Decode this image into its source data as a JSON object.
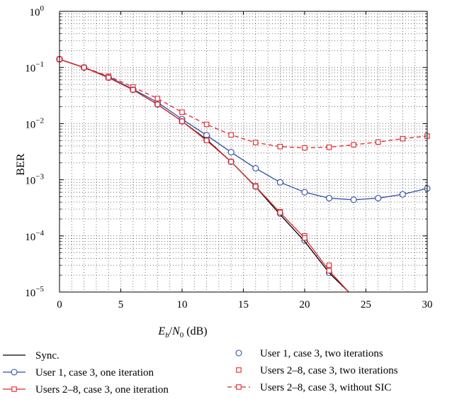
{
  "chart_data": {
    "type": "line",
    "title": "",
    "xlabel": {
      "base": "E",
      "base_sub": "b",
      "slash": "/",
      "denom": "N",
      "denom_sub": "0",
      "unit": " (dB)"
    },
    "ylabel": "BER",
    "xlim": [
      0,
      30
    ],
    "ylim": [
      1e-05,
      1
    ],
    "yscale": "log",
    "grid": true,
    "x_ticks": [
      0,
      5,
      10,
      15,
      20,
      25,
      30
    ],
    "x_tick_labels": [
      "0",
      "5",
      "10",
      "15",
      "20",
      "25",
      "30"
    ],
    "y_ticks": [
      {
        "value": 1,
        "base": "10",
        "exp": "0"
      },
      {
        "value": 0.1,
        "base": "10",
        "exp": "−1"
      },
      {
        "value": 0.01,
        "base": "10",
        "exp": "−2"
      },
      {
        "value": 0.001,
        "base": "10",
        "exp": "−3"
      },
      {
        "value": 0.0001,
        "base": "10",
        "exp": "−4"
      },
      {
        "value": 1e-05,
        "base": "10",
        "exp": "−5"
      }
    ],
    "legend_placement": "below",
    "series": [
      {
        "name": "Sync.",
        "color": "#000000",
        "line": "solid",
        "marker": "none",
        "x": [
          0,
          2,
          4,
          6,
          8,
          10,
          12,
          14,
          16,
          18,
          20,
          22,
          23.6
        ],
        "y": [
          0.14,
          0.1,
          0.066,
          0.04,
          0.022,
          0.011,
          0.0052,
          0.0021,
          0.00075,
          0.00024,
          8e-05,
          2.2e-05,
          1e-05
        ]
      },
      {
        "name": "User 1, case 3, one iteration",
        "color": "#2f4f9f",
        "line": "solid",
        "marker": "circle",
        "x": [
          0,
          2,
          4,
          6,
          8,
          10,
          12,
          14,
          16,
          18,
          20,
          22,
          24,
          26,
          28,
          30
        ],
        "y": [
          0.14,
          0.1,
          0.068,
          0.041,
          0.024,
          0.012,
          0.0062,
          0.0031,
          0.0016,
          0.0009,
          0.0006,
          0.00047,
          0.00044,
          0.00047,
          0.00055,
          0.0007
        ]
      },
      {
        "name": "User 1, case 3, two iterations",
        "color": "#2f4f9f",
        "line": "none",
        "marker": "circle",
        "x": [
          0,
          2,
          4,
          6,
          8,
          10,
          12,
          14,
          16,
          18,
          20,
          22
        ],
        "y": [
          0.14,
          0.1,
          0.066,
          0.04,
          0.022,
          0.011,
          0.0051,
          0.0021,
          0.00076,
          0.00025,
          8.3e-05,
          2.2e-05
        ]
      },
      {
        "name": "Users 2–8, case 3, two iterations",
        "color": "#e0282e",
        "line": "none",
        "marker": "square",
        "x": [
          0,
          2,
          4,
          6,
          8,
          10,
          12,
          14,
          16,
          18,
          20,
          22
        ],
        "y": [
          0.14,
          0.1,
          0.066,
          0.04,
          0.022,
          0.011,
          0.0051,
          0.0021,
          0.00078,
          0.00027,
          0.0001,
          3e-05
        ]
      },
      {
        "name": "Users 2–8, case 3, one iteration",
        "color": "#e0282e",
        "line": "solid",
        "marker": "square",
        "x": [
          0,
          2,
          4,
          6,
          8,
          10,
          12,
          14,
          16,
          18,
          20,
          22,
          23.6
        ],
        "y": [
          0.14,
          0.1,
          0.066,
          0.04,
          0.022,
          0.011,
          0.005,
          0.0021,
          0.00076,
          0.00026,
          9.2e-05,
          2.4e-05,
          1e-05
        ]
      },
      {
        "name": "Users 2–8, case 3, without SIC",
        "color": "#e0282e",
        "line": "dashed",
        "marker": "square",
        "x": [
          0,
          2,
          4,
          6,
          8,
          10,
          12,
          14,
          16,
          18,
          20,
          22,
          24,
          26,
          28,
          30
        ],
        "y": [
          0.14,
          0.1,
          0.07,
          0.045,
          0.028,
          0.016,
          0.0097,
          0.0063,
          0.0046,
          0.0039,
          0.0037,
          0.0038,
          0.0042,
          0.0047,
          0.0054,
          0.006
        ]
      }
    ],
    "legend": {
      "left": [
        0,
        1,
        4
      ],
      "right": [
        2,
        3,
        5
      ]
    }
  }
}
